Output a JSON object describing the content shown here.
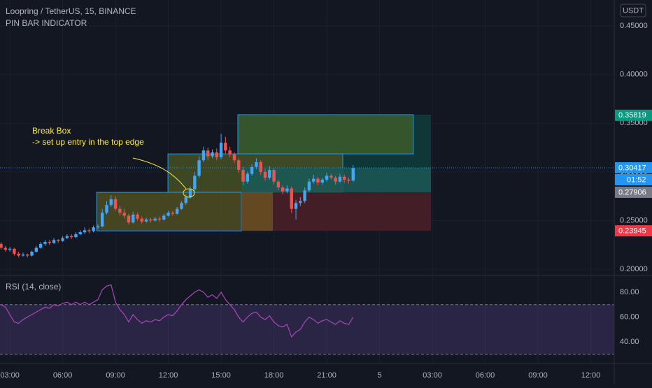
{
  "chart_data": [
    {
      "type": "candlestick",
      "title": "Loopring / TetherUS, 15, BINANCE",
      "subtitle": "PIN BAR INDICATOR",
      "currency": "USDT",
      "annotations": [
        "Break Box",
        "-> set up entry in the top edge"
      ],
      "up_color": "#42a5f5",
      "down_color": "#ef5350",
      "grid": true,
      "xlim": [
        2.44,
        37.33
      ],
      "ylim": [
        0.1943,
        0.4766
      ],
      "xticks": [
        {
          "value": 3,
          "label": "03:00"
        },
        {
          "value": 6,
          "label": "06:00"
        },
        {
          "value": 9,
          "label": "09:00"
        },
        {
          "value": 12,
          "label": "12:00"
        },
        {
          "value": 15,
          "label": "15:00"
        },
        {
          "value": 18,
          "label": "18:00"
        },
        {
          "value": 21,
          "label": "21:00"
        },
        {
          "value": 24,
          "label": "5"
        },
        {
          "value": 27,
          "label": "03:00"
        },
        {
          "value": 30,
          "label": "06:00"
        },
        {
          "value": 33,
          "label": "09:00"
        },
        {
          "value": 36,
          "label": "12:00"
        }
      ],
      "yticks": [
        {
          "value": 0.45,
          "label": "0.45000"
        },
        {
          "value": 0.4,
          "label": "0.40000"
        },
        {
          "value": 0.35,
          "label": "0.35000"
        },
        {
          "value": 0.3,
          "label": "0.30000"
        },
        {
          "value": 0.25,
          "label": "0.25000"
        },
        {
          "value": 0.2,
          "label": "0.20000"
        }
      ],
      "x": [
        2.5,
        2.75,
        3,
        3.25,
        3.5,
        3.75,
        4,
        4.25,
        4.5,
        4.75,
        5,
        5.25,
        5.5,
        5.75,
        6,
        6.25,
        6.5,
        6.75,
        7,
        7.25,
        7.5,
        7.75,
        8,
        8.25,
        8.5,
        8.75,
        9,
        9.25,
        9.5,
        9.75,
        10,
        10.25,
        10.5,
        10.75,
        11,
        11.25,
        11.5,
        11.75,
        12,
        12.25,
        12.5,
        12.75,
        13,
        13.25,
        13.5,
        13.75,
        14,
        14.25,
        14.5,
        14.75,
        15,
        15.25,
        15.5,
        15.75,
        16,
        16.25,
        16.5,
        16.75,
        17,
        17.25,
        17.5,
        17.75,
        18,
        18.25,
        18.5,
        18.75,
        19,
        19.25,
        19.5,
        19.75,
        20,
        20.25,
        20.5,
        20.75,
        21,
        21.25,
        21.5,
        21.75,
        22,
        22.25,
        22.5
      ],
      "ohlc": [
        [
          0.226,
          0.228,
          0.22,
          0.222
        ],
        [
          0.222,
          0.224,
          0.218,
          0.22
        ],
        [
          0.22,
          0.223,
          0.218,
          0.221
        ],
        [
          0.221,
          0.222,
          0.214,
          0.216
        ],
        [
          0.216,
          0.218,
          0.212,
          0.214
        ],
        [
          0.214,
          0.217,
          0.213,
          0.215
        ],
        [
          0.215,
          0.216,
          0.212,
          0.214
        ],
        [
          0.214,
          0.219,
          0.213,
          0.218
        ],
        [
          0.218,
          0.224,
          0.217,
          0.222
        ],
        [
          0.222,
          0.228,
          0.221,
          0.226
        ],
        [
          0.226,
          0.23,
          0.224,
          0.228
        ],
        [
          0.228,
          0.23,
          0.225,
          0.227
        ],
        [
          0.227,
          0.232,
          0.226,
          0.23
        ],
        [
          0.23,
          0.231,
          0.227,
          0.229
        ],
        [
          0.229,
          0.234,
          0.228,
          0.232
        ],
        [
          0.232,
          0.236,
          0.231,
          0.234
        ],
        [
          0.234,
          0.236,
          0.231,
          0.233
        ],
        [
          0.233,
          0.238,
          0.232,
          0.236
        ],
        [
          0.236,
          0.24,
          0.235,
          0.238
        ],
        [
          0.238,
          0.243,
          0.236,
          0.24
        ],
        [
          0.24,
          0.242,
          0.237,
          0.239
        ],
        [
          0.239,
          0.245,
          0.238,
          0.243
        ],
        [
          0.243,
          0.246,
          0.241,
          0.244
        ],
        [
          0.244,
          0.262,
          0.243,
          0.258
        ],
        [
          0.258,
          0.27,
          0.256,
          0.266
        ],
        [
          0.266,
          0.276,
          0.264,
          0.272
        ],
        [
          0.272,
          0.275,
          0.26,
          0.262
        ],
        [
          0.262,
          0.265,
          0.255,
          0.258
        ],
        [
          0.258,
          0.262,
          0.252,
          0.255
        ],
        [
          0.255,
          0.257,
          0.246,
          0.248
        ],
        [
          0.248,
          0.259,
          0.247,
          0.256
        ],
        [
          0.256,
          0.258,
          0.25,
          0.252
        ],
        [
          0.252,
          0.254,
          0.247,
          0.249
        ],
        [
          0.249,
          0.253,
          0.248,
          0.251
        ],
        [
          0.251,
          0.253,
          0.248,
          0.25
        ],
        [
          0.25,
          0.254,
          0.249,
          0.252
        ],
        [
          0.252,
          0.254,
          0.249,
          0.251
        ],
        [
          0.251,
          0.257,
          0.25,
          0.255
        ],
        [
          0.255,
          0.26,
          0.254,
          0.258
        ],
        [
          0.258,
          0.26,
          0.255,
          0.257
        ],
        [
          0.257,
          0.264,
          0.256,
          0.262
        ],
        [
          0.262,
          0.27,
          0.261,
          0.268
        ],
        [
          0.268,
          0.277,
          0.266,
          0.274
        ],
        [
          0.274,
          0.285,
          0.272,
          0.282
        ],
        [
          0.282,
          0.3,
          0.28,
          0.296
        ],
        [
          0.296,
          0.316,
          0.294,
          0.312
        ],
        [
          0.312,
          0.326,
          0.31,
          0.322
        ],
        [
          0.322,
          0.325,
          0.312,
          0.316
        ],
        [
          0.316,
          0.323,
          0.314,
          0.32
        ],
        [
          0.32,
          0.324,
          0.312,
          0.315
        ],
        [
          0.315,
          0.339,
          0.313,
          0.33
        ],
        [
          0.33,
          0.336,
          0.319,
          0.322
        ],
        [
          0.322,
          0.326,
          0.315,
          0.318
        ],
        [
          0.318,
          0.32,
          0.309,
          0.312
        ],
        [
          0.312,
          0.314,
          0.299,
          0.302
        ],
        [
          0.302,
          0.305,
          0.286,
          0.29
        ],
        [
          0.29,
          0.3,
          0.288,
          0.298
        ],
        [
          0.298,
          0.308,
          0.296,
          0.305
        ],
        [
          0.305,
          0.314,
          0.303,
          0.31
        ],
        [
          0.31,
          0.312,
          0.297,
          0.3
        ],
        [
          0.3,
          0.303,
          0.291,
          0.294
        ],
        [
          0.294,
          0.306,
          0.292,
          0.302
        ],
        [
          0.302,
          0.304,
          0.287,
          0.29
        ],
        [
          0.29,
          0.292,
          0.281,
          0.284
        ],
        [
          0.284,
          0.286,
          0.277,
          0.28
        ],
        [
          0.28,
          0.286,
          0.278,
          0.283
        ],
        [
          0.283,
          0.285,
          0.258,
          0.262
        ],
        [
          0.262,
          0.271,
          0.251,
          0.268
        ],
        [
          0.268,
          0.274,
          0.265,
          0.27
        ],
        [
          0.27,
          0.284,
          0.268,
          0.281
        ],
        [
          0.281,
          0.293,
          0.279,
          0.29
        ],
        [
          0.29,
          0.297,
          0.288,
          0.293
        ],
        [
          0.293,
          0.295,
          0.286,
          0.289
        ],
        [
          0.289,
          0.294,
          0.287,
          0.292
        ],
        [
          0.292,
          0.299,
          0.29,
          0.296
        ],
        [
          0.296,
          0.298,
          0.292,
          0.294
        ],
        [
          0.294,
          0.296,
          0.287,
          0.29
        ],
        [
          0.29,
          0.298,
          0.289,
          0.295
        ],
        [
          0.295,
          0.297,
          0.289,
          0.292
        ],
        [
          0.292,
          0.294,
          0.288,
          0.291
        ],
        [
          0.291,
          0.307,
          0.29,
          0.304
        ]
      ],
      "boxes": [
        {
          "x": [
            15.95,
            26.92
          ],
          "y": [
            0.3588,
            0.3042
          ],
          "color": "#0f3b3a"
        },
        {
          "x": [
            15.95,
            25.92
          ],
          "y": [
            0.3588,
            0.3185
          ],
          "color": "#3a5a2c",
          "border": "#2196f3"
        },
        {
          "x": [
            11.98,
            21.91
          ],
          "y": [
            0.3185,
            0.279
          ],
          "color": "#434d24",
          "border": "#2196f3"
        },
        {
          "x": [
            16.15,
            26.92
          ],
          "y": [
            0.3042,
            0.279
          ],
          "color": "#1b5955"
        },
        {
          "x": [
            17.94,
            26.92
          ],
          "y": [
            0.279,
            0.2394
          ],
          "color": "#4a1f27"
        },
        {
          "x": [
            7.93,
            16.15
          ],
          "y": [
            0.279,
            0.2394
          ],
          "color": "#4b4a22",
          "border": "#2196f3"
        },
        {
          "x": [
            16.15,
            17.94
          ],
          "y": [
            0.279,
            0.2394
          ],
          "color": "#6d4e22"
        }
      ],
      "price_markers": [
        {
          "value": 0.35819,
          "color": "#089981"
        },
        {
          "value": 0.30417,
          "color": "#2196f3",
          "countdown": "01:52",
          "dotted_line": true
        },
        {
          "value": 0.27906,
          "color": "#787b86"
        },
        {
          "value": 0.23945,
          "color": "#f23645"
        }
      ]
    },
    {
      "type": "line",
      "title": "RSI (14, close)",
      "color": "#ab47bc",
      "band_color": "#7e57c2",
      "ylim": [
        22.5,
        93
      ],
      "bands": [
        70,
        30
      ],
      "yticks": [
        {
          "value": 80,
          "label": "80.00"
        },
        {
          "value": 60,
          "label": "60.00"
        },
        {
          "value": 40,
          "label": "40.00"
        }
      ],
      "x": [
        2.5,
        2.75,
        3,
        3.25,
        3.5,
        3.75,
        4,
        4.25,
        4.5,
        4.75,
        5,
        5.25,
        5.5,
        5.75,
        6,
        6.25,
        6.5,
        6.75,
        7,
        7.25,
        7.5,
        7.75,
        8,
        8.25,
        8.5,
        8.75,
        9,
        9.25,
        9.5,
        9.75,
        10,
        10.25,
        10.5,
        10.75,
        11,
        11.25,
        11.5,
        11.75,
        12,
        12.25,
        12.5,
        12.75,
        13,
        13.25,
        13.5,
        13.75,
        14,
        14.25,
        14.5,
        14.75,
        15,
        15.25,
        15.5,
        15.75,
        16,
        16.25,
        16.5,
        16.75,
        17,
        17.25,
        17.5,
        17.75,
        18,
        18.25,
        18.5,
        18.75,
        19,
        19.25,
        19.5,
        19.75,
        20,
        20.25,
        20.5,
        20.75,
        21,
        21.25,
        21.5,
        21.75,
        22,
        22.25,
        22.5
      ],
      "values": [
        70,
        68,
        62,
        56,
        55,
        58,
        60,
        62,
        64,
        66,
        68,
        67,
        70,
        69,
        71,
        72,
        70,
        72,
        70,
        72,
        70,
        72,
        74,
        82,
        85,
        86,
        72,
        66,
        62,
        56,
        62,
        58,
        55,
        57,
        56,
        58,
        57,
        60,
        62,
        61,
        65,
        70,
        74,
        77,
        80,
        82,
        80,
        76,
        78,
        75,
        80,
        74,
        70,
        66,
        60,
        56,
        60,
        63,
        64,
        60,
        58,
        61,
        56,
        53,
        52,
        54,
        44,
        48,
        50,
        56,
        60,
        58,
        55,
        57,
        58,
        56,
        54,
        57,
        55,
        54,
        60
      ]
    }
  ]
}
